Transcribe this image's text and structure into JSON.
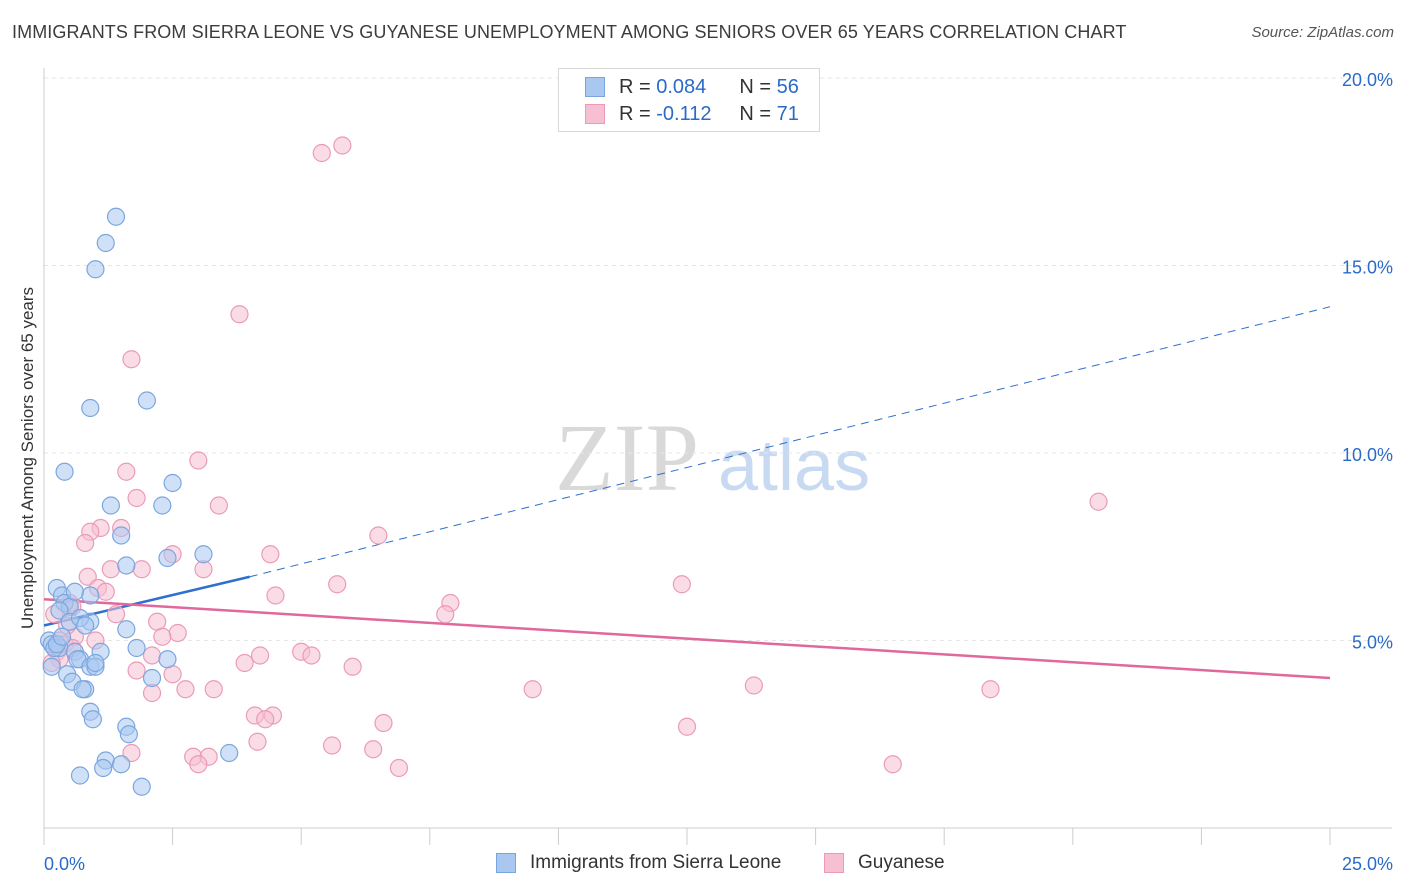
{
  "header": {
    "title": "IMMIGRANTS FROM SIERRA LEONE VS GUYANESE UNEMPLOYMENT AMONG SENIORS OVER 65 YEARS CORRELATION CHART",
    "source": "Source: ZipAtlas.com"
  },
  "watermark": {
    "zip": "ZIP",
    "atlas": "atlas"
  },
  "legend": {
    "rows": [
      {
        "r_label": "R =",
        "r_value": "0.084",
        "n_label": "N =",
        "n_value": "56"
      },
      {
        "r_label": "R =",
        "r_value": "-0.112",
        "n_label": "N =",
        "n_value": "71"
      }
    ]
  },
  "bottom_legend": {
    "series1": "Immigrants from Sierra Leone",
    "series2": "Guyanese"
  },
  "chart_data": {
    "type": "scatter",
    "title": "IMMIGRANTS FROM SIERRA LEONE VS GUYANESE UNEMPLOYMENT AMONG SENIORS OVER 65 YEARS CORRELATION CHART",
    "xlabel": "",
    "ylabel": "Unemployment Among Seniors over 65 years",
    "xlim": [
      0,
      25
    ],
    "ylim": [
      0,
      20
    ],
    "x_tick_labels": [
      "0.0%",
      "25.0%"
    ],
    "y_ticks": [
      5,
      10,
      15,
      20
    ],
    "y_tick_labels": [
      "5.0%",
      "10.0%",
      "15.0%",
      "20.0%"
    ],
    "colors": {
      "blue_fill": "#a9c8f0",
      "blue_stroke": "#7aa6e0",
      "blue_line": "#2f6fd0",
      "pink_fill": "#f6c0d2",
      "pink_stroke": "#eb9ab8",
      "pink_line": "#e0689a",
      "axis_text": "#2a6bc7"
    },
    "series": [
      {
        "name": "Immigrants from Sierra Leone",
        "color": "blue",
        "R": 0.084,
        "N": 56,
        "trend": {
          "x0": 0,
          "y0": 5.4,
          "x1": 4.0,
          "y1": 6.7,
          "dash_x1": 25,
          "dash_y1": 13.9
        },
        "points": [
          [
            1.4,
            16.3
          ],
          [
            1.2,
            15.6
          ],
          [
            1.0,
            14.9
          ],
          [
            2.0,
            11.4
          ],
          [
            0.9,
            11.2
          ],
          [
            0.4,
            9.5
          ],
          [
            2.5,
            9.2
          ],
          [
            1.3,
            8.6
          ],
          [
            2.3,
            8.6
          ],
          [
            1.5,
            7.8
          ],
          [
            3.1,
            7.3
          ],
          [
            2.4,
            7.2
          ],
          [
            1.6,
            7.0
          ],
          [
            0.25,
            6.4
          ],
          [
            0.35,
            6.2
          ],
          [
            0.9,
            6.2
          ],
          [
            0.4,
            6.0
          ],
          [
            0.5,
            5.9
          ],
          [
            0.3,
            5.8
          ],
          [
            0.5,
            5.5
          ],
          [
            0.9,
            5.5
          ],
          [
            0.7,
            5.6
          ],
          [
            0.8,
            5.4
          ],
          [
            1.6,
            5.3
          ],
          [
            0.1,
            5.0
          ],
          [
            0.15,
            4.9
          ],
          [
            0.3,
            4.8
          ],
          [
            0.2,
            4.8
          ],
          [
            0.25,
            4.9
          ],
          [
            0.6,
            4.7
          ],
          [
            1.1,
            4.7
          ],
          [
            1.8,
            4.8
          ],
          [
            0.7,
            4.5
          ],
          [
            0.65,
            4.5
          ],
          [
            0.9,
            4.3
          ],
          [
            1.0,
            4.3
          ],
          [
            2.4,
            4.5
          ],
          [
            0.15,
            4.3
          ],
          [
            0.45,
            4.1
          ],
          [
            2.1,
            4.0
          ],
          [
            0.55,
            3.9
          ],
          [
            0.8,
            3.7
          ],
          [
            0.75,
            3.7
          ],
          [
            0.9,
            3.1
          ],
          [
            0.95,
            2.9
          ],
          [
            1.6,
            2.7
          ],
          [
            1.65,
            2.5
          ],
          [
            3.6,
            2.0
          ],
          [
            1.2,
            1.8
          ],
          [
            1.5,
            1.7
          ],
          [
            1.15,
            1.6
          ],
          [
            0.7,
            1.4
          ],
          [
            1.9,
            1.1
          ],
          [
            0.35,
            5.1
          ],
          [
            1.0,
            4.4
          ],
          [
            0.6,
            6.3
          ]
        ]
      },
      {
        "name": "Guyanese",
        "color": "pink",
        "R": -0.112,
        "N": 71,
        "trend": {
          "x0": 0,
          "y0": 6.1,
          "x1": 25,
          "y1": 4.0
        },
        "points": [
          [
            5.8,
            18.2
          ],
          [
            5.4,
            18.0
          ],
          [
            3.8,
            13.7
          ],
          [
            1.7,
            12.5
          ],
          [
            3.0,
            9.8
          ],
          [
            1.6,
            9.5
          ],
          [
            1.8,
            8.8
          ],
          [
            3.4,
            8.6
          ],
          [
            20.5,
            8.7
          ],
          [
            1.1,
            8.0
          ],
          [
            0.9,
            7.9
          ],
          [
            1.5,
            8.0
          ],
          [
            0.8,
            7.6
          ],
          [
            6.5,
            7.8
          ],
          [
            2.5,
            7.3
          ],
          [
            4.4,
            7.3
          ],
          [
            3.1,
            6.9
          ],
          [
            1.9,
            6.9
          ],
          [
            1.3,
            6.9
          ],
          [
            0.85,
            6.7
          ],
          [
            5.7,
            6.5
          ],
          [
            12.4,
            6.5
          ],
          [
            1.05,
            6.4
          ],
          [
            1.2,
            6.3
          ],
          [
            4.5,
            6.2
          ],
          [
            0.5,
            6.0
          ],
          [
            0.55,
            5.9
          ],
          [
            7.9,
            6.0
          ],
          [
            1.4,
            5.7
          ],
          [
            0.2,
            5.7
          ],
          [
            7.8,
            5.7
          ],
          [
            2.2,
            5.5
          ],
          [
            2.6,
            5.2
          ],
          [
            2.3,
            5.1
          ],
          [
            0.6,
            5.1
          ],
          [
            0.3,
            5.0
          ],
          [
            0.4,
            4.9
          ],
          [
            0.55,
            4.8
          ],
          [
            0.25,
            4.7
          ],
          [
            5.0,
            4.7
          ],
          [
            5.2,
            4.6
          ],
          [
            4.2,
            4.6
          ],
          [
            2.1,
            4.6
          ],
          [
            0.3,
            4.5
          ],
          [
            3.9,
            4.4
          ],
          [
            6.0,
            4.3
          ],
          [
            1.8,
            4.2
          ],
          [
            2.5,
            4.1
          ],
          [
            2.75,
            3.7
          ],
          [
            3.3,
            3.7
          ],
          [
            2.1,
            3.6
          ],
          [
            9.5,
            3.7
          ],
          [
            13.8,
            3.8
          ],
          [
            18.4,
            3.7
          ],
          [
            4.1,
            3.0
          ],
          [
            4.45,
            3.0
          ],
          [
            4.3,
            2.9
          ],
          [
            6.6,
            2.8
          ],
          [
            12.5,
            2.7
          ],
          [
            4.15,
            2.3
          ],
          [
            5.6,
            2.2
          ],
          [
            1.7,
            2.0
          ],
          [
            6.4,
            2.1
          ],
          [
            2.9,
            1.9
          ],
          [
            3.2,
            1.9
          ],
          [
            3.0,
            1.7
          ],
          [
            16.5,
            1.7
          ],
          [
            6.9,
            1.6
          ],
          [
            0.15,
            4.4
          ],
          [
            0.45,
            5.4
          ],
          [
            1.0,
            5.0
          ]
        ]
      }
    ]
  }
}
